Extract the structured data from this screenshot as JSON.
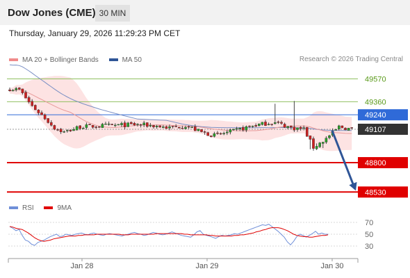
{
  "header": {
    "title": "Dow Jones (CME)",
    "timeframe": "30 MIN",
    "timestamp": "Thursday, January 29, 2026 11:29:23 PM CET"
  },
  "legend": {
    "ma20_label": "MA 20 + Bollinger Bands",
    "ma20_color": "#f08a8a",
    "ma50_label": "MA 50",
    "ma50_color": "#2f5597",
    "rsi_label": "RSI",
    "rsi_color": "#6f8fd8",
    "ma9_label": "9MA",
    "ma9_color": "#e00000"
  },
  "credit": "Research © 2026 Trading Central",
  "chart_data": {
    "type": "candlestick",
    "price_axis": {
      "min": 48500,
      "max": 49650
    },
    "x_axis": {
      "tick_labels": [
        "Jan 28",
        "Jan 29",
        "Jan 30"
      ]
    },
    "levels": [
      {
        "value": 49570,
        "label": "49570",
        "style": "resistance",
        "color": "#90c060"
      },
      {
        "value": 49360,
        "label": "49360",
        "style": "resistance",
        "color": "#90c060"
      },
      {
        "value": 49240,
        "label": "49240",
        "style": "pivot",
        "color": "#2f6ad8"
      },
      {
        "value": 49107,
        "label": "49107",
        "style": "last",
        "color": "#333333"
      },
      {
        "value": 48800,
        "label": "48800",
        "style": "support",
        "color": "#e00000"
      },
      {
        "value": 48530,
        "label": "48530",
        "style": "support",
        "color": "#e00000"
      }
    ],
    "forecast_arrow": {
      "from": 49107,
      "to": 48530,
      "color": "#2f5597"
    },
    "rsi": {
      "tick_labels": [
        "70",
        "50",
        "30"
      ],
      "rsi_values": [
        63,
        60,
        56,
        58,
        48,
        40,
        38,
        33,
        31,
        36,
        38,
        40,
        43,
        46,
        48,
        50,
        46,
        47,
        50,
        49,
        48,
        50,
        51,
        52,
        50,
        49,
        51,
        52,
        50,
        49,
        48,
        50,
        51,
        50,
        49,
        48,
        47,
        49,
        50,
        52,
        53,
        51,
        50,
        48,
        49,
        51,
        53,
        52,
        50,
        49,
        50,
        52,
        54,
        52,
        50,
        48,
        47,
        46,
        45,
        49,
        54,
        56,
        50,
        48,
        47,
        45,
        43,
        46,
        48,
        47,
        48,
        49,
        51,
        50,
        52,
        54,
        56,
        58,
        60,
        62,
        64,
        66,
        65,
        67,
        63,
        59,
        55,
        50,
        45,
        37,
        32,
        38,
        46,
        50,
        48,
        45,
        48,
        51,
        55,
        50,
        52,
        50,
        50
      ],
      "ma9_values": [
        63,
        62,
        60,
        59,
        58,
        55,
        52,
        48,
        44,
        41,
        39,
        38,
        39,
        40,
        42,
        43,
        44,
        45,
        46,
        47,
        47,
        47,
        48,
        48,
        49,
        49,
        49,
        49,
        50,
        50,
        50,
        50,
        50,
        50,
        50,
        50,
        49,
        49,
        49,
        50,
        50,
        50,
        50,
        50,
        50,
        50,
        50,
        51,
        51,
        51,
        51,
        51,
        51,
        51,
        51,
        51,
        50,
        50,
        49,
        49,
        49,
        49,
        49,
        49,
        48,
        48,
        47,
        47,
        47,
        47,
        47,
        47,
        48,
        48,
        49,
        49,
        50,
        51,
        52,
        54,
        55,
        57,
        58,
        60,
        61,
        61,
        61,
        60,
        58,
        56,
        53,
        50,
        48,
        47,
        46,
        46,
        45,
        45,
        46,
        47,
        48,
        48,
        49
      ]
    }
  }
}
